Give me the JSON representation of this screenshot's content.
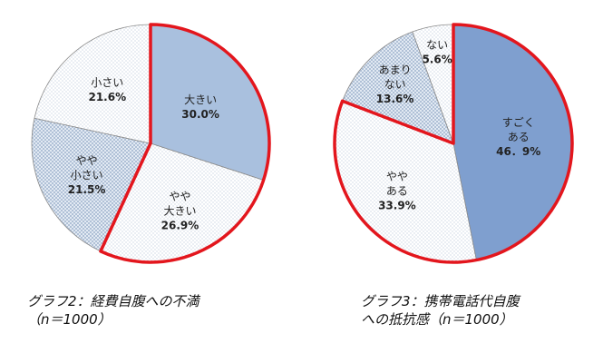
{
  "chart_data": [
    {
      "type": "pie",
      "title": "グラフ2：経費自腹への不満",
      "subtitle": "（n＝1000）",
      "slices": [
        {
          "label": [
            "大きい"
          ],
          "value": 30.0,
          "value_label": "30.0%",
          "color": "#a9c0de",
          "pattern": "solid",
          "highlight": true
        },
        {
          "label": [
            "やや",
            "大きい"
          ],
          "value": 26.9,
          "value_label": "26.9%",
          "color": "#ffffff",
          "pattern": "dots",
          "highlight": true
        },
        {
          "label": [
            "やや",
            "小さい"
          ],
          "value": 21.5,
          "value_label": "21.5%",
          "color": "#eef3f9",
          "pattern": "crosshatch",
          "highlight": false
        },
        {
          "label": [
            "小さい"
          ],
          "value": 21.6,
          "value_label": "21.6%",
          "color": "#ffffff",
          "pattern": "dots",
          "highlight": false
        }
      ]
    },
    {
      "type": "pie",
      "title": "グラフ3：携帯電話代自腹",
      "subtitle": "への抵抗感（n＝1000）",
      "slices": [
        {
          "label": [
            "すごく",
            "ある"
          ],
          "value": 46.9,
          "value_label": "46．9%",
          "color": "#7f9fcf",
          "pattern": "solid",
          "highlight": true
        },
        {
          "label": [
            "やや",
            "ある"
          ],
          "value": 33.9,
          "value_label": "33.9%",
          "color": "#ffffff",
          "pattern": "dots",
          "highlight": true
        },
        {
          "label": [
            "あまり",
            "ない"
          ],
          "value": 13.6,
          "value_label": "13.6%",
          "color": "#e6edf6",
          "pattern": "crosshatch",
          "highlight": false
        },
        {
          "label": [
            "ない"
          ],
          "value": 5.6,
          "value_label": "5.6%",
          "color": "#ffffff",
          "pattern": "dots",
          "highlight": false
        }
      ]
    }
  ]
}
